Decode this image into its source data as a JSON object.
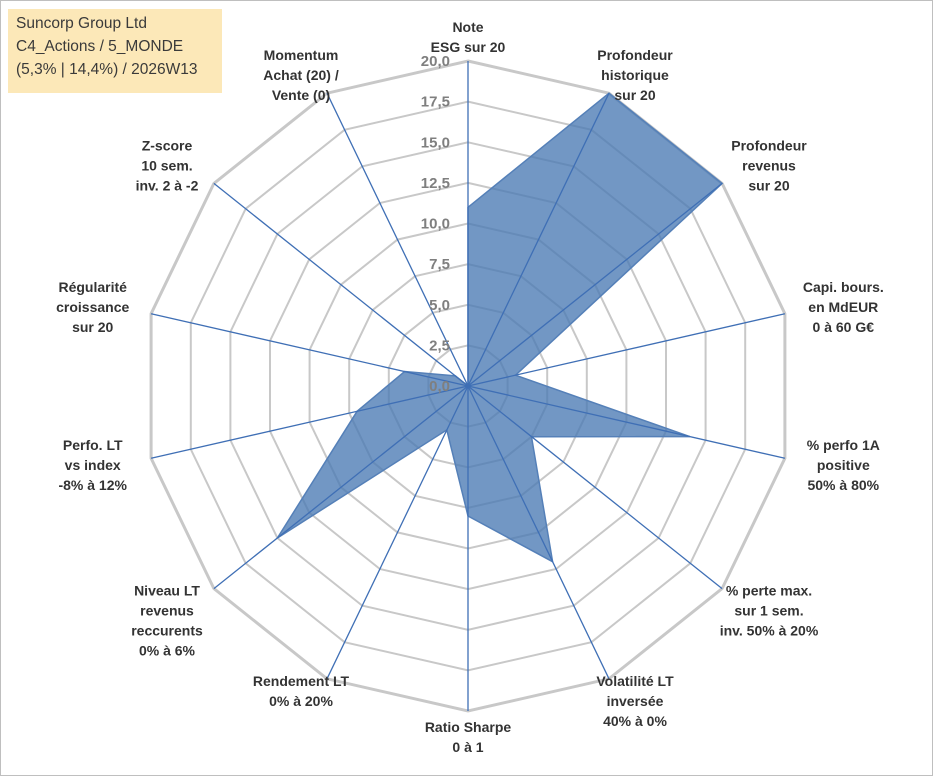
{
  "title_box": {
    "line1": "Suncorp Group Ltd",
    "line2": "C4_Actions / 5_MONDE",
    "line3": "(5,3% | 14,4%) / 2026W13"
  },
  "colors": {
    "fill": "#4a7ab3",
    "stroke": "#5580b8",
    "spokes": "#3f6fb5",
    "grid": "#c8c8c8"
  },
  "chart_data": {
    "type": "radar",
    "scale": {
      "min": 0,
      "max": 20,
      "step": 2.5
    },
    "tick_labels": [
      "0,0",
      "2,5",
      "5,0",
      "7,5",
      "10,0",
      "12,5",
      "15,0",
      "17,5",
      "20,0"
    ],
    "axes": [
      {
        "label": [
          "Note",
          "ESG sur 20"
        ],
        "value": 11.0
      },
      {
        "label": [
          "Profondeur",
          "historique",
          "sur 20"
        ],
        "value": 20.0
      },
      {
        "label": [
          "Profondeur",
          "revenus",
          "sur 20"
        ],
        "value": 20.0
      },
      {
        "label": [
          "Capi. bours.",
          "en MdEUR",
          "0 à 60 G€"
        ],
        "value": 3.0
      },
      {
        "label": [
          "% perfo 1A",
          "positive",
          "50% à 80%"
        ],
        "value": 14.0
      },
      {
        "label": [
          "% perte max.",
          "sur 1 sem.",
          "inv. 50% à 20%"
        ],
        "value": 5.0
      },
      {
        "label": [
          "Volatilité LT",
          "inversée",
          "40% à 0%"
        ],
        "value": 12.0
      },
      {
        "label": [
          "Ratio Sharpe",
          "0 à 1"
        ],
        "value": 8.0
      },
      {
        "label": [
          "Rendement LT",
          "0% à 20%"
        ],
        "value": 3.0
      },
      {
        "label": [
          "Niveau LT",
          "revenus",
          "reccurents",
          "0% à 6%"
        ],
        "value": 15.0
      },
      {
        "label": [
          "Perfo. LT",
          "vs index",
          "-8% à 12%"
        ],
        "value": 7.0
      },
      {
        "label": [
          "Régularité",
          "croissance",
          "sur 20"
        ],
        "value": 4.0
      },
      {
        "label": [
          "Z-score",
          "10 sem.",
          "inv. 2 à -2"
        ],
        "value": 1.0
      },
      {
        "label": [
          "Momentum",
          "Achat (20) /",
          "Vente (0)"
        ],
        "value": 0.0
      }
    ]
  }
}
